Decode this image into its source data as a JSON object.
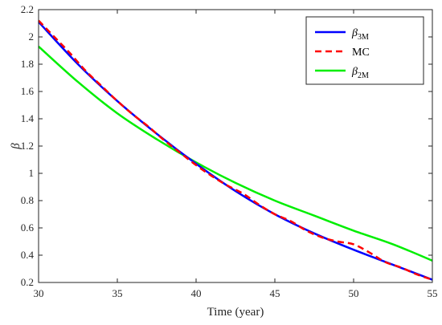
{
  "chart_data": {
    "type": "line",
    "xlabel": "Time (year)",
    "ylabel": "β",
    "xlim": [
      30,
      55
    ],
    "ylim": [
      0.2,
      2.2
    ],
    "xticks": [
      "30",
      "35",
      "40",
      "45",
      "50",
      "55"
    ],
    "yticks": [
      "0.2",
      "0.4",
      "0.6",
      "0.8",
      "1",
      "1.2",
      "1.4",
      "1.6",
      "1.8",
      "2",
      "2.2"
    ],
    "grid": false,
    "legend_position": "top-right",
    "series": [
      {
        "name": "β3M",
        "legend_main": "β",
        "legend_sub": "3M",
        "color": "#0000ff",
        "dash": "solid",
        "x": [
          30,
          32.5,
          35,
          37.5,
          40,
          42.5,
          45,
          47.5,
          50,
          52.5,
          55
        ],
        "y": [
          2.11,
          1.8,
          1.53,
          1.29,
          1.07,
          0.87,
          0.7,
          0.56,
          0.44,
          0.33,
          0.22
        ]
      },
      {
        "name": "MC",
        "legend_main": "MC",
        "legend_sub": "",
        "color": "#ff0000",
        "dash": "dashed",
        "x": [
          30,
          31,
          32,
          33,
          34,
          35,
          36,
          37,
          38,
          39,
          40,
          41,
          42,
          43,
          44,
          45,
          46,
          47,
          48,
          49,
          50,
          51,
          52,
          53,
          54,
          55
        ],
        "y": [
          2.12,
          2.0,
          1.88,
          1.75,
          1.64,
          1.53,
          1.43,
          1.34,
          1.24,
          1.15,
          1.06,
          0.98,
          0.91,
          0.85,
          0.77,
          0.7,
          0.65,
          0.58,
          0.53,
          0.5,
          0.48,
          0.42,
          0.35,
          0.31,
          0.26,
          0.22
        ]
      },
      {
        "name": "β2M",
        "legend_main": "β",
        "legend_sub": "2M",
        "color": "#00ee00",
        "dash": "solid",
        "x": [
          30,
          32.5,
          35,
          37.5,
          40,
          42.5,
          45,
          47.5,
          50,
          52.5,
          55
        ],
        "y": [
          1.93,
          1.67,
          1.44,
          1.25,
          1.08,
          0.93,
          0.8,
          0.69,
          0.58,
          0.48,
          0.36
        ]
      }
    ]
  }
}
